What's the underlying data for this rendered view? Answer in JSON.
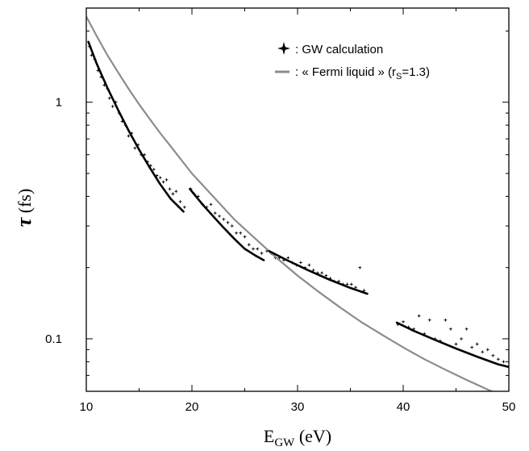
{
  "chart_data": {
    "type": "scatter",
    "xlabel": {
      "main": "E",
      "sub": "GW",
      "rest": " (eV)"
    },
    "ylabel": {
      "symbol": "τ",
      "rest": " (fs)"
    },
    "xlim": [
      10,
      50
    ],
    "ylim": [
      0.06,
      2.5
    ],
    "yscale": "log",
    "x_ticks": [
      10,
      20,
      30,
      40,
      50
    ],
    "x_tick_labels": [
      "10",
      "20",
      "30",
      "40",
      "50"
    ],
    "y_tick_labels": [
      {
        "value": 1,
        "label": "1"
      },
      {
        "value": 0.1,
        "label": "0.1"
      }
    ],
    "grid": false,
    "legend": {
      "position": "top-right",
      "gw_label": ": GW calculation",
      "fermi_label_prefix": ": « Fermi liquid » (r",
      "fermi_label_sub": "S",
      "fermi_label_suffix": "=1.3)"
    },
    "series": [
      {
        "name": "GW calculation",
        "kind": "points",
        "color": "#000000",
        "x": [
          10.3,
          10.5,
          10.8,
          11.1,
          11.4,
          11.7,
          12.0,
          12.2,
          12.5,
          12.8,
          13.1,
          13.4,
          13.7,
          14.0,
          14.3,
          14.6,
          14.9,
          15.2,
          15.5,
          15.8,
          16.1,
          16.4,
          16.7,
          17.0,
          17.3,
          17.6,
          17.9,
          18.2,
          18.5,
          18.9,
          19.3,
          19.9,
          20.2,
          20.6,
          21.0,
          21.4,
          21.8,
          22.2,
          22.6,
          23.0,
          23.4,
          23.8,
          24.2,
          24.6,
          25.0,
          25.4,
          25.8,
          26.2,
          26.6,
          27.1,
          27.5,
          27.9,
          28.3,
          28.7,
          29.1,
          29.5,
          29.9,
          30.3,
          30.7,
          31.1,
          31.5,
          31.9,
          32.3,
          32.7,
          33.1,
          33.5,
          33.9,
          34.3,
          34.7,
          35.1,
          35.5,
          35.9,
          36.3,
          39.5,
          40.0,
          40.5,
          41.0,
          41.5,
          42.0,
          42.5,
          43.0,
          43.5,
          44.0,
          44.5,
          45.0,
          45.5,
          46.0,
          46.5,
          47.0,
          47.5,
          48.0,
          48.5,
          49.0,
          49.5
        ],
        "y": [
          1.72,
          1.58,
          1.52,
          1.36,
          1.28,
          1.18,
          1.14,
          1.04,
          0.96,
          1.0,
          0.9,
          0.83,
          0.8,
          0.72,
          0.74,
          0.64,
          0.66,
          0.6,
          0.6,
          0.56,
          0.54,
          0.52,
          0.49,
          0.48,
          0.46,
          0.47,
          0.43,
          0.41,
          0.42,
          0.38,
          0.36,
          0.43,
          0.41,
          0.4,
          0.37,
          0.36,
          0.37,
          0.34,
          0.33,
          0.32,
          0.31,
          0.3,
          0.28,
          0.28,
          0.27,
          0.25,
          0.24,
          0.24,
          0.23,
          0.235,
          0.23,
          0.22,
          0.22,
          0.215,
          0.22,
          0.21,
          0.205,
          0.21,
          0.2,
          0.205,
          0.195,
          0.19,
          0.19,
          0.185,
          0.18,
          0.175,
          0.175,
          0.17,
          0.17,
          0.17,
          0.165,
          0.2,
          0.16,
          0.115,
          0.118,
          0.112,
          0.11,
          0.125,
          0.105,
          0.12,
          0.1,
          0.098,
          0.12,
          0.11,
          0.095,
          0.1,
          0.11,
          0.092,
          0.095,
          0.088,
          0.09,
          0.085,
          0.082,
          0.08
        ]
      },
      {
        "name": "Fermi liquid",
        "kind": "line",
        "color": "#8c8c8c",
        "x": [
          10,
          11,
          12,
          13,
          14,
          15,
          16,
          17,
          18,
          19,
          20,
          22,
          24,
          26,
          28,
          30,
          32,
          34,
          36,
          38,
          40,
          42,
          44,
          46,
          48,
          50
        ],
        "y": [
          2.3,
          1.9,
          1.58,
          1.34,
          1.14,
          0.98,
          0.85,
          0.74,
          0.65,
          0.57,
          0.5,
          0.4,
          0.32,
          0.265,
          0.22,
          0.185,
          0.158,
          0.136,
          0.118,
          0.104,
          0.092,
          0.082,
          0.074,
          0.067,
          0.061,
          0.056
        ]
      },
      {
        "name": "",
        "kind": "line",
        "color": "#000000",
        "x": [
          10.2,
          11,
          12,
          13,
          14,
          15,
          16,
          17,
          18,
          19.2
        ],
        "y": [
          1.8,
          1.45,
          1.15,
          0.93,
          0.76,
          0.63,
          0.53,
          0.45,
          0.39,
          0.345
        ]
      },
      {
        "name": "",
        "kind": "line",
        "color": "#000000",
        "x": [
          19.8,
          21,
          22,
          23,
          24,
          25,
          26,
          26.8
        ],
        "y": [
          0.43,
          0.37,
          0.33,
          0.295,
          0.265,
          0.24,
          0.225,
          0.215
        ]
      },
      {
        "name": "",
        "kind": "line",
        "color": "#000000",
        "x": [
          27.3,
          29,
          31,
          33,
          35,
          36.6
        ],
        "y": [
          0.235,
          0.215,
          0.195,
          0.178,
          0.164,
          0.155
        ]
      },
      {
        "name": "",
        "kind": "line",
        "color": "#000000",
        "x": [
          39.4,
          41,
          43,
          45,
          47,
          49,
          50
        ],
        "y": [
          0.117,
          0.108,
          0.099,
          0.091,
          0.084,
          0.078,
          0.076
        ]
      }
    ]
  }
}
